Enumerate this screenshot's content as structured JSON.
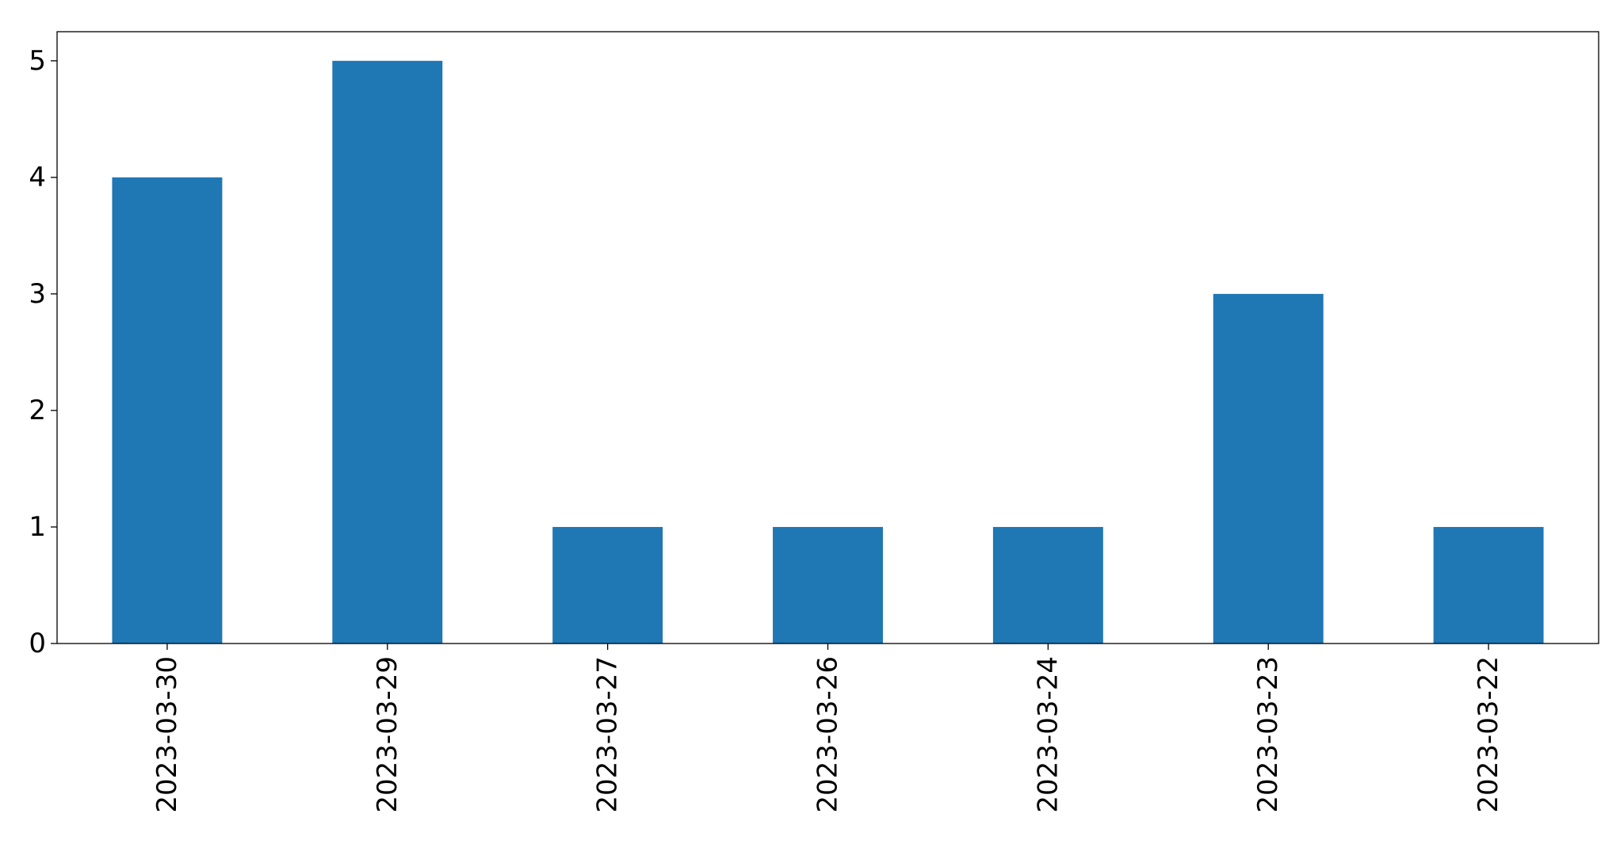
{
  "chart_data": {
    "type": "bar",
    "title": "",
    "xlabel": "",
    "ylabel": "",
    "categories": [
      "2023-03-30",
      "2023-03-29",
      "2023-03-27",
      "2023-03-26",
      "2023-03-24",
      "2023-03-23",
      "2023-03-22"
    ],
    "values": [
      4,
      5,
      1,
      1,
      1,
      3,
      1
    ],
    "ylim": [
      0,
      5.25
    ],
    "yticks": [
      0,
      1,
      2,
      3,
      4,
      5
    ],
    "ytick_labels": [
      "0",
      "1",
      "2",
      "3",
      "4",
      "5"
    ],
    "grid": false,
    "legend": "none",
    "bar_color": "#1f77b4",
    "axis_color": "#000000"
  }
}
